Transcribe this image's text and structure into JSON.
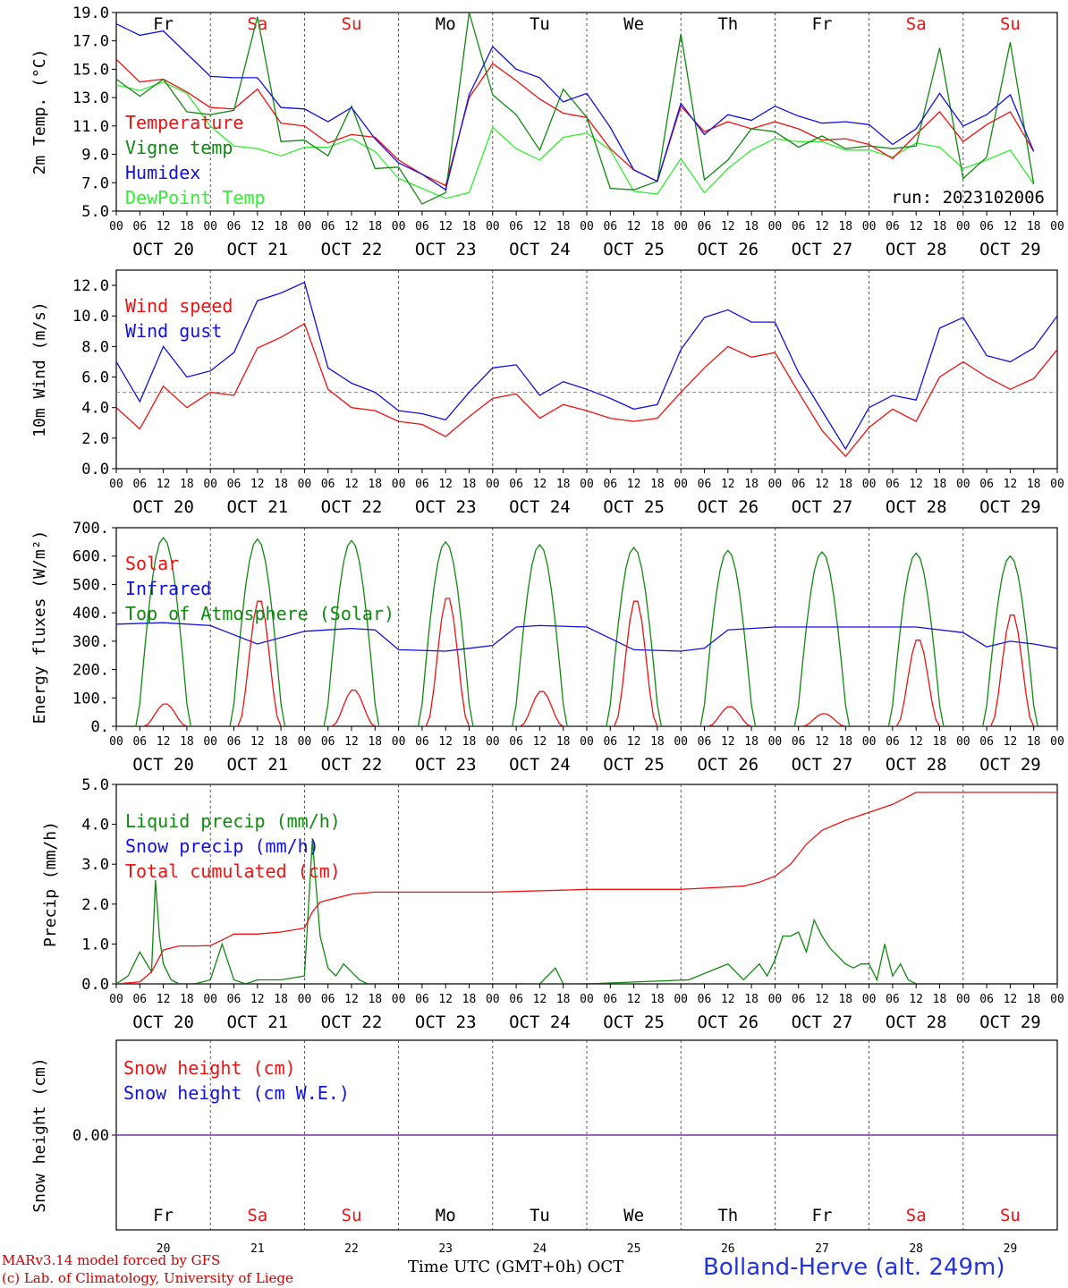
{
  "meta": {
    "days": [
      "Fr",
      "Sa",
      "Su",
      "Mo",
      "Tu",
      "We",
      "Th",
      "Fr",
      "Sa",
      "Su"
    ],
    "weekend_days": [
      "Sa",
      "Su"
    ],
    "hour_ticks": [
      "00",
      "06",
      "12",
      "18"
    ],
    "date_labels": [
      "OCT 20",
      "OCT 21",
      "OCT 22",
      "OCT 23",
      "OCT 24",
      "OCT 25",
      "OCT 26",
      "OCT 27",
      "OCT 28",
      "OCT 29"
    ],
    "day_numbers": [
      "20",
      "21",
      "22",
      "23",
      "24",
      "25",
      "26",
      "27",
      "28",
      "29"
    ],
    "colors": {
      "red": "#ee1111",
      "blue": "#1111dd",
      "green": "#118811",
      "lightgreen": "#33ee33",
      "grey": "#888888",
      "purple": "#7733aa"
    }
  },
  "footer": {
    "credit_line1": "MARv3.14 model forced by GFS",
    "credit_line2": "(c) Lab. of Climatology, University of Liege",
    "axis_title": "Time UTC (GMT+0h) OCT",
    "station": "Bolland-Herve (alt. 249m)"
  },
  "chart_data": [
    {
      "type": "line",
      "title": "",
      "ylabel": "2m Temp. (°C)",
      "ylim": [
        5.0,
        19.0
      ],
      "yticks": [
        "5.0",
        "7.0",
        "9.0",
        "11.0",
        "13.0",
        "15.0",
        "17.0",
        "19.0"
      ],
      "x_unit": "hours since OCT 20 00 UTC",
      "annotation": "run: 2023102006",
      "series": [
        {
          "name": "Temperature",
          "color": "#ee1111",
          "x": [
            0,
            6,
            12,
            18,
            24,
            30,
            36,
            42,
            48,
            54,
            60,
            66,
            72,
            78,
            84,
            90,
            96,
            102,
            108,
            114,
            120,
            126,
            132,
            138,
            144,
            150,
            156,
            162,
            168,
            174,
            180,
            186,
            192,
            198,
            204,
            210,
            216,
            222,
            228,
            234
          ],
          "y": [
            15.7,
            14.1,
            14.3,
            13.4,
            12.3,
            12.2,
            13.6,
            11.2,
            11.0,
            9.8,
            10.4,
            10.2,
            8.6,
            7.6,
            6.8,
            13.0,
            15.4,
            14.2,
            12.9,
            11.9,
            11.6,
            9.4,
            7.9,
            7.1,
            12.4,
            10.6,
            11.3,
            10.8,
            11.3,
            10.8,
            10.0,
            10.1,
            9.7,
            8.7,
            10.4,
            12.0,
            9.9,
            11.1,
            12.0,
            9.2
          ]
        },
        {
          "name": "Vigne temp",
          "color": "#118811",
          "x": [
            0,
            6,
            12,
            18,
            24,
            30,
            36,
            42,
            48,
            54,
            60,
            66,
            72,
            78,
            84,
            90,
            96,
            102,
            108,
            114,
            120,
            126,
            132,
            138,
            144,
            150,
            156,
            162,
            168,
            174,
            180,
            186,
            192,
            198,
            204,
            210,
            216,
            222,
            228,
            234
          ],
          "y": [
            14.3,
            13.1,
            14.3,
            12.0,
            11.8,
            12.1,
            18.7,
            9.9,
            10.0,
            8.9,
            12.4,
            8.0,
            8.1,
            5.5,
            6.3,
            19.0,
            13.2,
            11.8,
            9.3,
            13.6,
            11.6,
            6.6,
            6.5,
            7.1,
            17.5,
            7.2,
            8.6,
            10.8,
            10.6,
            9.5,
            10.3,
            9.4,
            9.6,
            9.4,
            9.6,
            16.5,
            7.3,
            8.8,
            16.9,
            6.9
          ]
        },
        {
          "name": "Humidex",
          "color": "#1111dd",
          "x": [
            0,
            6,
            12,
            18,
            24,
            30,
            36,
            42,
            48,
            54,
            60,
            66,
            72,
            78,
            84,
            90,
            96,
            102,
            108,
            114,
            120,
            126,
            132,
            138,
            144,
            150,
            156,
            162,
            168,
            174,
            180,
            186,
            192,
            198,
            204,
            210,
            216,
            222,
            228,
            234
          ],
          "y": [
            18.2,
            17.4,
            17.7,
            16.1,
            14.5,
            14.4,
            14.4,
            12.3,
            12.2,
            11.3,
            12.3,
            10.1,
            8.4,
            7.6,
            6.5,
            13.2,
            16.6,
            15.0,
            14.4,
            12.7,
            13.3,
            10.9,
            7.9,
            7.1,
            12.6,
            10.4,
            11.8,
            11.4,
            12.4,
            11.7,
            11.2,
            11.3,
            11.1,
            9.7,
            10.8,
            13.3,
            11.0,
            11.8,
            13.2,
            9.2
          ]
        },
        {
          "name": "DewPoint Temp",
          "color": "#33ee33",
          "x": [
            0,
            6,
            12,
            18,
            24,
            30,
            36,
            42,
            48,
            54,
            60,
            66,
            72,
            78,
            84,
            90,
            96,
            102,
            108,
            114,
            120,
            126,
            132,
            138,
            144,
            150,
            156,
            162,
            168,
            174,
            180,
            186,
            192,
            198,
            204,
            210,
            216,
            222,
            228,
            234
          ],
          "y": [
            13.9,
            13.5,
            14.1,
            13.3,
            11.0,
            9.6,
            9.4,
            8.9,
            9.5,
            9.5,
            10.1,
            9.2,
            7.3,
            6.6,
            5.9,
            6.3,
            10.9,
            9.4,
            8.6,
            10.2,
            10.5,
            9.3,
            6.4,
            6.2,
            8.7,
            6.3,
            8.0,
            9.3,
            10.1,
            9.9,
            9.9,
            9.3,
            9.3,
            8.8,
            9.8,
            9.5,
            8.0,
            8.6,
            9.3,
            6.9
          ]
        }
      ]
    },
    {
      "type": "line",
      "title": "",
      "ylabel": "10m Wind (m/s)",
      "ylim": [
        0.0,
        13.0
      ],
      "yticks": [
        "0.0",
        "2.0",
        "4.0",
        "6.0",
        "8.0",
        "10.0",
        "12.0"
      ],
      "reference_line": 5.0,
      "series": [
        {
          "name": "Wind speed",
          "color": "#ee1111",
          "x": [
            0,
            6,
            12,
            18,
            24,
            30,
            36,
            42,
            48,
            54,
            60,
            66,
            72,
            78,
            84,
            90,
            96,
            102,
            108,
            114,
            120,
            126,
            132,
            138,
            144,
            150,
            156,
            162,
            168,
            174,
            180,
            186,
            192,
            198,
            204,
            210,
            216,
            222,
            228,
            234,
            240
          ],
          "y": [
            4.0,
            2.6,
            5.4,
            4.0,
            5.0,
            4.8,
            7.9,
            8.6,
            9.5,
            5.2,
            4.0,
            3.8,
            3.1,
            2.9,
            2.1,
            3.4,
            4.6,
            4.9,
            3.3,
            4.2,
            3.8,
            3.3,
            3.1,
            3.3,
            5.0,
            6.6,
            8.0,
            7.3,
            7.6,
            5.0,
            2.5,
            0.8,
            2.7,
            3.9,
            3.1,
            6.0,
            7.0,
            6.0,
            5.2,
            5.9,
            7.8
          ]
        },
        {
          "name": "Wind gust",
          "color": "#1111dd",
          "x": [
            0,
            6,
            12,
            18,
            24,
            30,
            36,
            42,
            48,
            54,
            60,
            66,
            72,
            78,
            84,
            90,
            96,
            102,
            108,
            114,
            120,
            126,
            132,
            138,
            144,
            150,
            156,
            162,
            168,
            174,
            180,
            186,
            192,
            198,
            204,
            210,
            216,
            222,
            228,
            234,
            240
          ],
          "y": [
            7.0,
            4.4,
            8.0,
            6.0,
            6.4,
            7.6,
            11.0,
            11.5,
            12.2,
            6.6,
            5.6,
            5.0,
            3.8,
            3.6,
            3.2,
            5.0,
            6.6,
            6.8,
            4.8,
            5.7,
            5.2,
            4.6,
            3.9,
            4.2,
            7.8,
            9.9,
            10.4,
            9.6,
            9.6,
            6.3,
            3.8,
            1.3,
            4.0,
            4.8,
            4.5,
            9.2,
            9.9,
            7.4,
            7.0,
            7.9,
            10.0
          ]
        }
      ]
    },
    {
      "type": "line",
      "title": "",
      "ylabel": "Energy fluxes (W/m²)",
      "ylim": [
        0,
        700
      ],
      "yticks": [
        "0.",
        "100.",
        "200.",
        "300.",
        "400.",
        "500.",
        "600.",
        "700."
      ],
      "series": [
        {
          "name": "Solar",
          "color": "#ee1111",
          "day_peaks": [
            80,
            450,
            130,
            460,
            125,
            450,
            70,
            45,
            310,
            400
          ]
        },
        {
          "name": "Infrared",
          "color": "#1111dd",
          "x": [
            0,
            12,
            24,
            36,
            48,
            54,
            60,
            66,
            72,
            84,
            96,
            102,
            108,
            120,
            132,
            144,
            150,
            156,
            168,
            180,
            192,
            204,
            216,
            222,
            228,
            234,
            240
          ],
          "y": [
            360,
            365,
            355,
            290,
            335,
            340,
            345,
            340,
            270,
            265,
            285,
            350,
            355,
            350,
            270,
            265,
            275,
            340,
            350,
            350,
            350,
            350,
            330,
            280,
            300,
            290,
            275
          ]
        },
        {
          "name": "Top of Atmosphere (Solar)",
          "color": "#118811",
          "day_peaks": [
            665,
            660,
            655,
            650,
            640,
            630,
            620,
            615,
            610,
            600
          ]
        }
      ]
    },
    {
      "type": "line",
      "title": "",
      "ylabel": "Precip (mm/h)",
      "ylim": [
        0.0,
        5.0
      ],
      "yticks": [
        "0.0",
        "1.0",
        "2.0",
        "3.0",
        "4.0",
        "5.0"
      ],
      "series": [
        {
          "name": "Liquid precip (mm/h)",
          "color": "#118811",
          "x": [
            0,
            3,
            6,
            9,
            10,
            11,
            12,
            14,
            16,
            20,
            24,
            27,
            30,
            33,
            36,
            42,
            48,
            50,
            52,
            54,
            56,
            58,
            60,
            62,
            64,
            66,
            72,
            108,
            112,
            114,
            118,
            120,
            146,
            156,
            160,
            162,
            164,
            166,
            168,
            170,
            172,
            174,
            176,
            178,
            180,
            182,
            184,
            186,
            188,
            190,
            192,
            194,
            196,
            198,
            200,
            202,
            204,
            240
          ],
          "y": [
            0,
            0.2,
            0.8,
            0.3,
            2.6,
            1.2,
            0.5,
            0.1,
            0,
            0,
            0.1,
            1.0,
            0.1,
            0,
            0.1,
            0.1,
            0.2,
            3.6,
            1.2,
            0.4,
            0.2,
            0.5,
            0.3,
            0.1,
            0,
            0,
            0,
            0,
            0.4,
            0,
            0,
            0,
            0.1,
            0.5,
            0.1,
            0.3,
            0.5,
            0.2,
            0.6,
            1.2,
            1.2,
            1.3,
            0.8,
            1.6,
            1.2,
            0.9,
            0.7,
            0.5,
            0.4,
            0.5,
            0.5,
            0.1,
            1.0,
            0.2,
            0.5,
            0.1,
            0,
            0
          ]
        },
        {
          "name": "Snow precip (mm/h)",
          "color": "#1111dd",
          "x": [
            0,
            240
          ],
          "y": [
            0,
            0
          ]
        },
        {
          "name": "Total cumulated (cm)",
          "color": "#ee1111",
          "x": [
            0,
            6,
            9,
            12,
            16,
            20,
            24,
            27,
            30,
            36,
            42,
            48,
            50,
            52,
            54,
            56,
            60,
            66,
            72,
            96,
            114,
            120,
            144,
            160,
            164,
            168,
            172,
            176,
            180,
            186,
            192,
            198,
            204,
            240
          ],
          "y": [
            0,
            0.05,
            0.3,
            0.85,
            0.95,
            0.95,
            0.96,
            1.1,
            1.25,
            1.25,
            1.3,
            1.4,
            1.8,
            2.05,
            2.1,
            2.15,
            2.25,
            2.3,
            2.3,
            2.3,
            2.35,
            2.37,
            2.37,
            2.45,
            2.55,
            2.7,
            3.0,
            3.5,
            3.85,
            4.1,
            4.3,
            4.5,
            4.8,
            4.8
          ]
        }
      ]
    },
    {
      "type": "line",
      "title": "",
      "ylabel": "Snow height (cm)",
      "yticks": [
        "0.00"
      ],
      "series": [
        {
          "name": "Snow height (cm)",
          "color": "#ee1111",
          "x": [
            0,
            240
          ],
          "y": [
            0,
            0
          ]
        },
        {
          "name": "Snow height (cm W.E.)",
          "color": "#1111dd",
          "x": [
            0,
            240
          ],
          "y": [
            0,
            0
          ]
        }
      ]
    }
  ]
}
